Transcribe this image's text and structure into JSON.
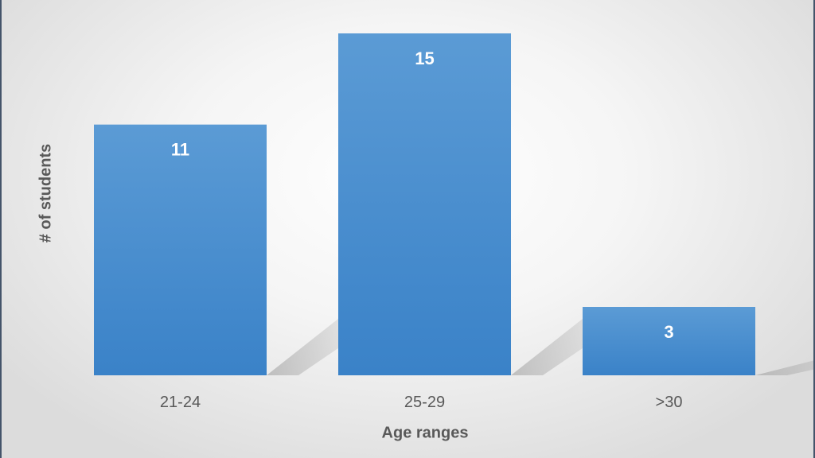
{
  "chart_data": {
    "type": "bar",
    "categories": [
      "21-24",
      "25-29",
      ">30"
    ],
    "values": [
      11,
      15,
      3
    ],
    "data_labels": [
      "11",
      "15",
      "3"
    ],
    "xlabel": "Age ranges",
    "ylabel": "# of students",
    "ylim": [
      0,
      15
    ],
    "grid": false,
    "legend": "none",
    "colors": {
      "bar": "#5b9bd5",
      "bar_dark": "#3a82c8",
      "text": "#595959",
      "label": "#ffffff",
      "frame": "#44546a"
    }
  }
}
